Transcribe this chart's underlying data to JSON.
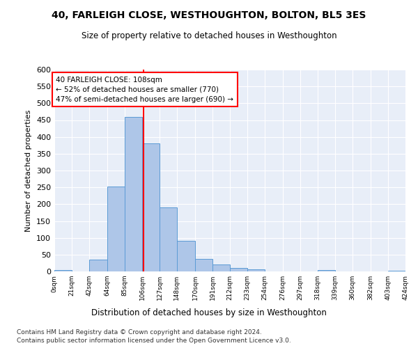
{
  "title": "40, FARLEIGH CLOSE, WESTHOUGHTON, BOLTON, BL5 3ES",
  "subtitle": "Size of property relative to detached houses in Westhoughton",
  "xlabel": "Distribution of detached houses by size in Westhoughton",
  "ylabel": "Number of detached properties",
  "bar_color": "#aec6e8",
  "bar_edge_color": "#5b9bd5",
  "vline_x": 108,
  "vline_color": "red",
  "annotation_text": "40 FARLEIGH CLOSE: 108sqm\n← 52% of detached houses are smaller (770)\n47% of semi-detached houses are larger (690) →",
  "bins": [
    0,
    21,
    42,
    64,
    85,
    106,
    127,
    148,
    170,
    191,
    212,
    233,
    254,
    276,
    297,
    318,
    339,
    360,
    382,
    403,
    424
  ],
  "bar_heights": [
    5,
    0,
    36,
    252,
    460,
    380,
    191,
    91,
    37,
    20,
    11,
    6,
    1,
    0,
    0,
    5,
    0,
    0,
    0,
    3
  ],
  "ylim": [
    0,
    600
  ],
  "yticks": [
    0,
    50,
    100,
    150,
    200,
    250,
    300,
    350,
    400,
    450,
    500,
    550,
    600
  ],
  "plot_bg_color": "#e8eef8",
  "footnote1": "Contains HM Land Registry data © Crown copyright and database right 2024.",
  "footnote2": "Contains public sector information licensed under the Open Government Licence v3.0."
}
